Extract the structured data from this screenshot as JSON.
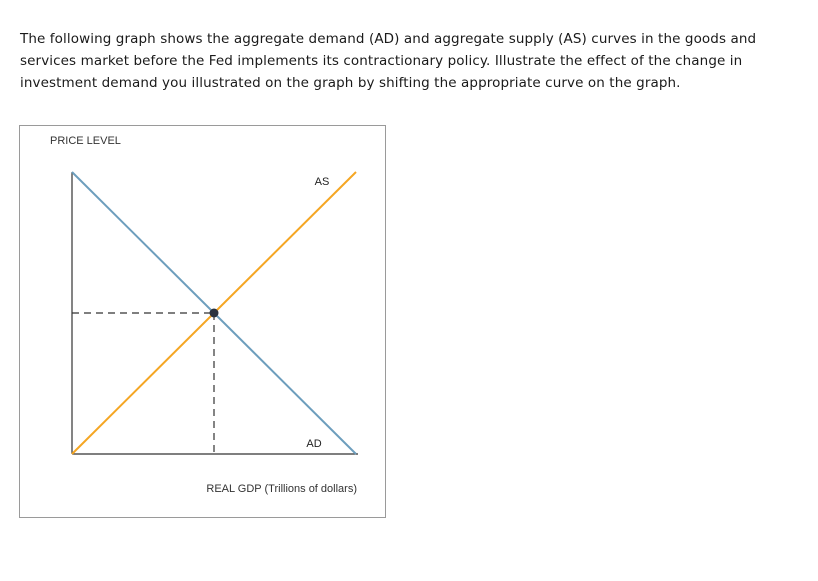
{
  "question": {
    "text": "The following graph shows the aggregate demand (AD) and aggregate supply (AS) curves in the goods and services market before the Fed implements its contractionary policy. Illustrate the effect of the change in investment demand you illustrated on the graph by shifting the appropriate curve on the graph."
  },
  "chart_data": {
    "type": "line",
    "title": "",
    "xlabel": "REAL GDP (Trillions of dollars)",
    "ylabel": "PRICE LEVEL",
    "xlim": [
      0,
      10
    ],
    "ylim": [
      0,
      10
    ],
    "grid": false,
    "series": [
      {
        "name": "AS",
        "color": "#f5a623",
        "points": [
          [
            0,
            0
          ],
          [
            10,
            10
          ]
        ]
      },
      {
        "name": "AD",
        "color": "#6d9ebd",
        "points": [
          [
            0,
            10
          ],
          [
            10,
            0
          ]
        ]
      }
    ],
    "equilibrium": {
      "x": 5,
      "y": 5,
      "color": "#2b3340"
    },
    "guide_color": "#333333"
  }
}
